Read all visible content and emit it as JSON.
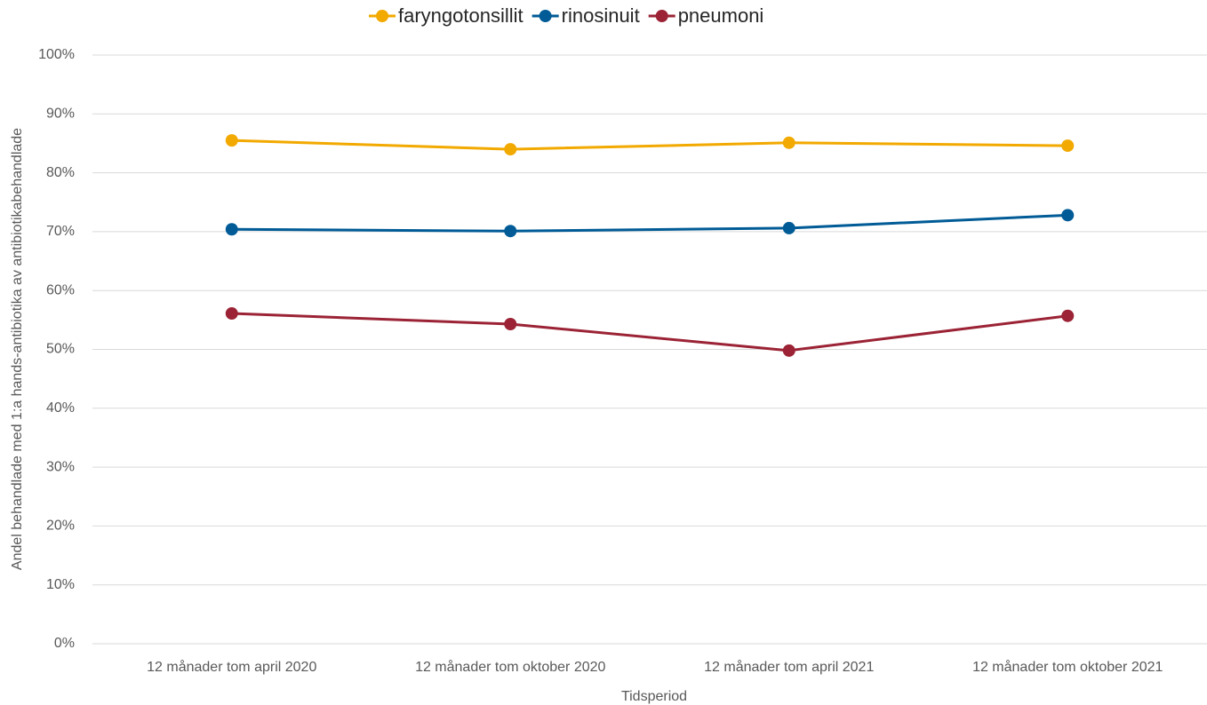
{
  "chart_data": {
    "type": "line",
    "categories": [
      "12 månader tom april 2020",
      "12 månader tom oktober 2020",
      "12 månader tom april 2021",
      "12 månader tom oktober 2021"
    ],
    "series": [
      {
        "name": "faryngotonsillit",
        "color": "#f2a900",
        "values": [
          85.5,
          84.0,
          85.1,
          84.6
        ]
      },
      {
        "name": "rinosinuit",
        "color": "#005b96",
        "values": [
          70.4,
          70.1,
          70.6,
          72.8
        ]
      },
      {
        "name": "pneumoni",
        "color": "#9b2335",
        "values": [
          56.1,
          54.3,
          49.8,
          55.7
        ]
      }
    ],
    "ylim": [
      0,
      100
    ],
    "yticks": [
      {
        "value": 0,
        "label": "0%"
      },
      {
        "value": 10,
        "label": "10%"
      },
      {
        "value": 20,
        "label": "20%"
      },
      {
        "value": 30,
        "label": "30%"
      },
      {
        "value": 40,
        "label": "40%"
      },
      {
        "value": 50,
        "label": "50%"
      },
      {
        "value": 60,
        "label": "60%"
      },
      {
        "value": 70,
        "label": "70%"
      },
      {
        "value": 80,
        "label": "80%"
      },
      {
        "value": 90,
        "label": "90%"
      },
      {
        "value": 100,
        "label": "100%"
      }
    ],
    "y_label": "Andel behandlade med 1:a hands-antibiotika av antibiotikabehandlade",
    "x_label": "Tidsperiod",
    "grid": true,
    "legend": "top"
  }
}
